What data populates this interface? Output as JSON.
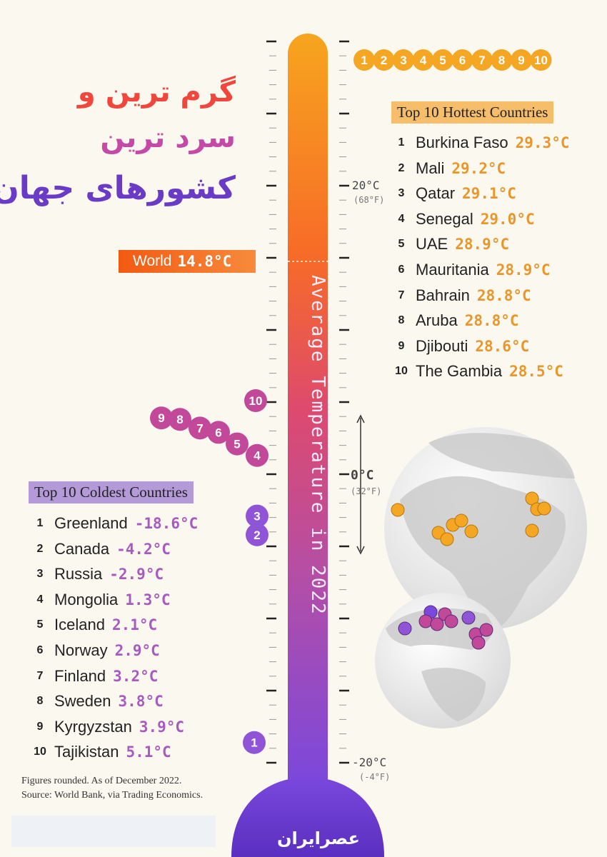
{
  "title_fa": [
    "گرم ترین و",
    "سرد ترین",
    "کشورهای جهان"
  ],
  "brand_fa": "عصرایران",
  "colors": {
    "hot": "#f5a623",
    "cold_pink": "#c2489a",
    "cold_purple": "#8f55d6",
    "world": "#f25a12",
    "background": "#fbf8ef"
  },
  "world": {
    "label": "World",
    "value": "14.8°C",
    "temp_c": 14.8
  },
  "footnote": {
    "line1": "Figures rounded. As of December 2022.",
    "line2": "Source: World Bank, via Trading Economics."
  },
  "chart_data": {
    "type": "bar",
    "title": "",
    "axis_label": "Average Temperature in 2022",
    "axis_ticks": [
      {
        "label": "20°C",
        "sub": "(68°F)",
        "value": 20
      },
      {
        "label": "0°C",
        "sub": "(32°F)",
        "value": 0
      },
      {
        "label": "-20°C",
        "sub": "(-4°F)",
        "value": -20
      }
    ],
    "ylim": [
      -22,
      34
    ],
    "hottest": {
      "header": "Top 10 Hottest Countries",
      "items": [
        {
          "rank": "1",
          "country": "Burkina Faso",
          "temp": "29.3°C",
          "value": 29.3
        },
        {
          "rank": "2",
          "country": "Mali",
          "temp": "29.2°C",
          "value": 29.2
        },
        {
          "rank": "3",
          "country": "Qatar",
          "temp": "29.1°C",
          "value": 29.1
        },
        {
          "rank": "4",
          "country": "Senegal",
          "temp": "29.0°C",
          "value": 29.0
        },
        {
          "rank": "5",
          "country": "UAE",
          "temp": "28.9°C",
          "value": 28.9
        },
        {
          "rank": "6",
          "country": "Mauritania",
          "temp": "28.9°C",
          "value": 28.9
        },
        {
          "rank": "7",
          "country": "Bahrain",
          "temp": "28.8°C",
          "value": 28.8
        },
        {
          "rank": "8",
          "country": "Aruba",
          "temp": "28.8°C",
          "value": 28.8
        },
        {
          "rank": "9",
          "country": "Djibouti",
          "temp": "28.6°C",
          "value": 28.6
        },
        {
          "rank": "10",
          "country": "The Gambia",
          "temp": "28.5°C",
          "value": 28.5
        }
      ]
    },
    "coldest": {
      "header": "Top 10 Coldest Countries",
      "items": [
        {
          "rank": "1",
          "country": "Greenland",
          "temp": "-18.6°C",
          "value": -18.6
        },
        {
          "rank": "2",
          "country": "Canada",
          "temp": "-4.2°C",
          "value": -4.2
        },
        {
          "rank": "3",
          "country": "Russia",
          "temp": "-2.9°C",
          "value": -2.9
        },
        {
          "rank": "4",
          "country": "Mongolia",
          "temp": "1.3°C",
          "value": 1.3
        },
        {
          "rank": "5",
          "country": "Iceland",
          "temp": "2.1°C",
          "value": 2.1
        },
        {
          "rank": "6",
          "country": "Norway",
          "temp": "2.9°C",
          "value": 2.9
        },
        {
          "rank": "7",
          "country": "Finland",
          "temp": "3.2°C",
          "value": 3.2
        },
        {
          "rank": "8",
          "country": "Sweden",
          "temp": "3.8°C",
          "value": 3.8
        },
        {
          "rank": "9",
          "country": "Kyrgyzstan",
          "temp": "3.9°C",
          "value": 3.9
        },
        {
          "rank": "10",
          "country": "Tajikistan",
          "temp": "5.1°C",
          "value": 5.1
        }
      ]
    }
  }
}
